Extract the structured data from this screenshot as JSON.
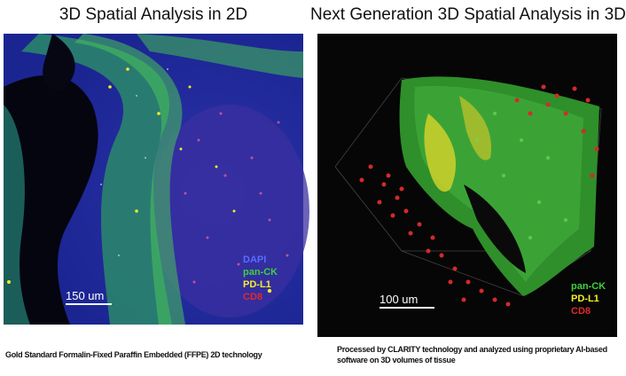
{
  "left": {
    "title": "3D Spatial Analysis in 2D",
    "scale_label": "150 um",
    "legend": [
      {
        "label": "DAPI",
        "color": "#5a6cff"
      },
      {
        "label": "pan-CK",
        "color": "#3cd23c"
      },
      {
        "label": "PD-L1",
        "color": "#f2ef2a"
      },
      {
        "label": "CD8",
        "color": "#e22a2a"
      }
    ],
    "caption": "Gold Standard Formalin-Fixed Paraffin Embedded (FFPE) 2D technology"
  },
  "right": {
    "title": "Next Generation 3D Spatial Analysis in 3D",
    "scale_label": "100 um",
    "legend": [
      {
        "label": "pan-CK",
        "color": "#3cd23c"
      },
      {
        "label": "PD-L1",
        "color": "#f2ef2a"
      },
      {
        "label": "CD8",
        "color": "#e22a2a"
      }
    ],
    "caption": "Processed by CLARITY technology and analyzed using proprietary AI-based software on 3D volumes of tissue"
  }
}
